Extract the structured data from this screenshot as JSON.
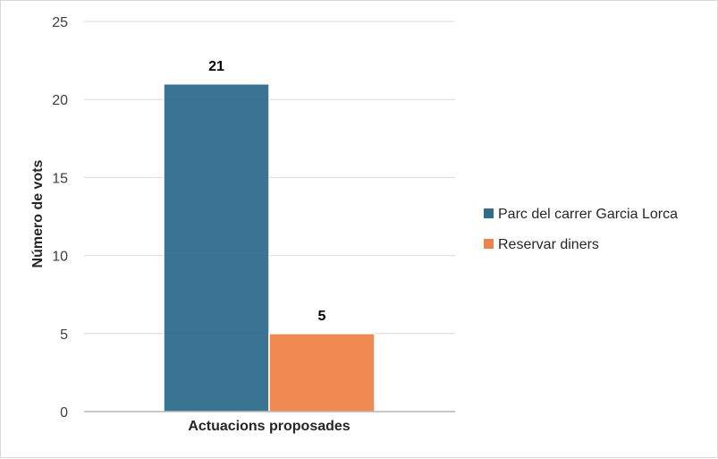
{
  "chart_data": {
    "type": "bar",
    "categories": [
      "Actuacions proposades"
    ],
    "series": [
      {
        "name": "Parc del carrer Garcia Lorca",
        "values": [
          21
        ],
        "color": "#2E6D8C"
      },
      {
        "name": "Reservar diners",
        "values": [
          5
        ],
        "color": "#EE8449"
      }
    ],
    "xlabel": "Actuacions proposades",
    "ylabel": "Número de vots",
    "ylim": [
      0,
      25
    ],
    "yticks": [
      0,
      5,
      10,
      15,
      20,
      25
    ],
    "data_labels": [
      "21",
      "5"
    ],
    "grid": true,
    "legend_position": "right"
  }
}
